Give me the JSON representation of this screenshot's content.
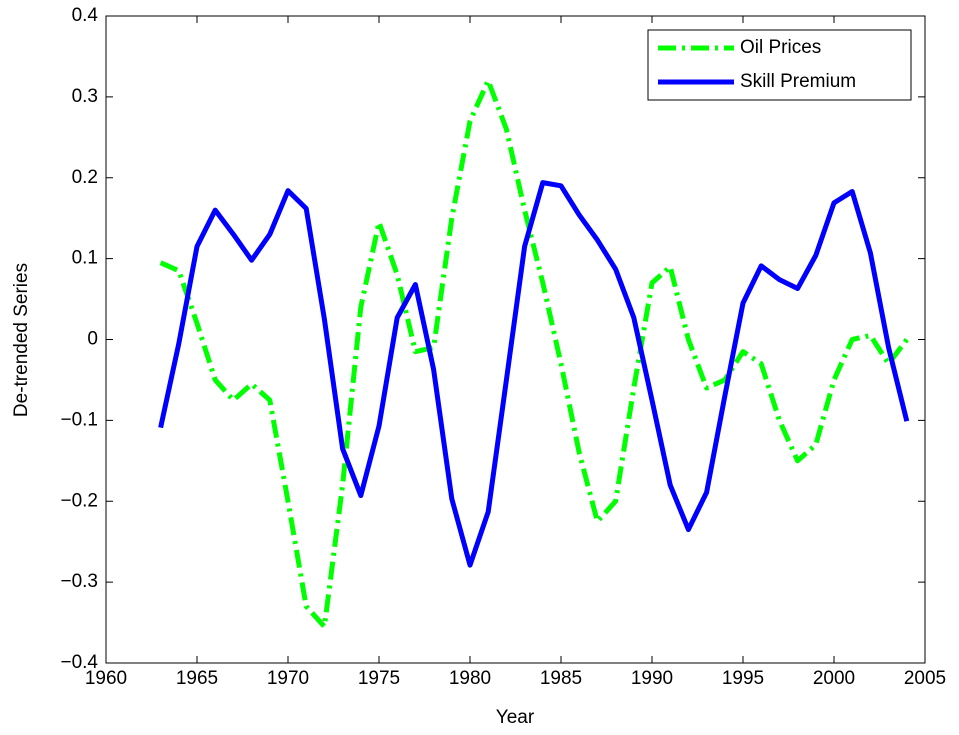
{
  "chart_data": {
    "type": "line",
    "xlabel": "Year",
    "ylabel": "De-trended Series",
    "x": [
      1963,
      1964,
      1965,
      1966,
      1967,
      1968,
      1969,
      1970,
      1971,
      1972,
      1973,
      1974,
      1975,
      1976,
      1977,
      1978,
      1979,
      1980,
      1981,
      1982,
      1983,
      1984,
      1985,
      1986,
      1987,
      1988,
      1989,
      1990,
      1991,
      1992,
      1993,
      1994,
      1995,
      1996,
      1997,
      1998,
      1999,
      2000,
      2001,
      2002,
      2003,
      2004
    ],
    "series": [
      {
        "name": "Oil Prices",
        "color": "#00ff00",
        "style": "dashdot",
        "values": [
          0.095,
          0.085,
          0.02,
          -0.05,
          -0.075,
          -0.055,
          -0.075,
          -0.2,
          -0.33,
          -0.355,
          -0.18,
          0.04,
          0.145,
          0.08,
          -0.015,
          -0.01,
          0.15,
          0.27,
          0.32,
          0.26,
          0.16,
          0.07,
          -0.03,
          -0.14,
          -0.225,
          -0.2,
          -0.06,
          0.07,
          0.09,
          0.0,
          -0.06,
          -0.05,
          -0.015,
          -0.03,
          -0.1,
          -0.15,
          -0.13,
          -0.05,
          0.0,
          0.005,
          -0.03,
          0.0
        ]
      },
      {
        "name": "Skill Premium",
        "color": "#0000ff",
        "style": "solid",
        "values": [
          -0.109,
          -0.005,
          0.115,
          0.16,
          0.13,
          0.098,
          0.13,
          0.184,
          0.162,
          0.025,
          -0.135,
          -0.193,
          -0.107,
          0.027,
          0.068,
          -0.037,
          -0.197,
          -0.279,
          -0.213,
          -0.05,
          0.115,
          0.194,
          0.19,
          0.154,
          0.123,
          0.087,
          0.027,
          -0.075,
          -0.18,
          -0.235,
          -0.189,
          -0.07,
          0.045,
          0.091,
          0.074,
          0.063,
          0.104,
          0.169,
          0.183,
          0.107,
          -0.01,
          -0.101
        ]
      }
    ],
    "xlim": [
      1960,
      2005
    ],
    "xticks": [
      1960,
      1965,
      1970,
      1975,
      1980,
      1985,
      1990,
      1995,
      2000,
      2005
    ],
    "ylim": [
      -0.4,
      0.4
    ],
    "yticks": [
      {
        "value": -0.4,
        "label": "−0.4"
      },
      {
        "value": -0.3,
        "label": "−0.3"
      },
      {
        "value": -0.2,
        "label": "−0.2"
      },
      {
        "value": -0.1,
        "label": "−0.1"
      },
      0,
      0.1,
      0.2,
      0.3,
      0.4
    ],
    "grid": false,
    "legend": "northeast"
  }
}
